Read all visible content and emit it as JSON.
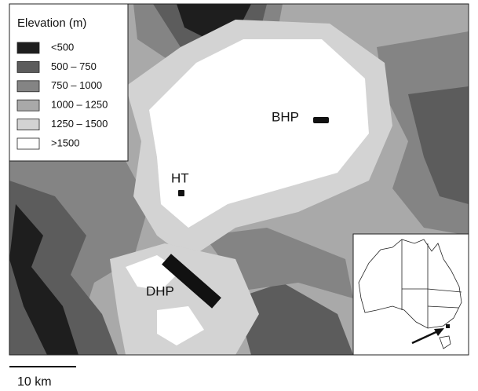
{
  "legend": {
    "title": "Elevation (m)",
    "items": [
      {
        "label": "<500",
        "color": "#1e1e1e"
      },
      {
        "label": "500 – 750",
        "color": "#5c5c5c"
      },
      {
        "label": "750 – 1000",
        "color": "#848484"
      },
      {
        "label": "1000 – 1250",
        "color": "#a9a9a9"
      },
      {
        "label": "1250 – 1500",
        "color": "#d3d3d3"
      },
      {
        "label": ">1500",
        "color": "#ffffff"
      }
    ]
  },
  "sites": [
    "BHP",
    "HT",
    "DHP"
  ],
  "scale_bar": "10 km"
}
